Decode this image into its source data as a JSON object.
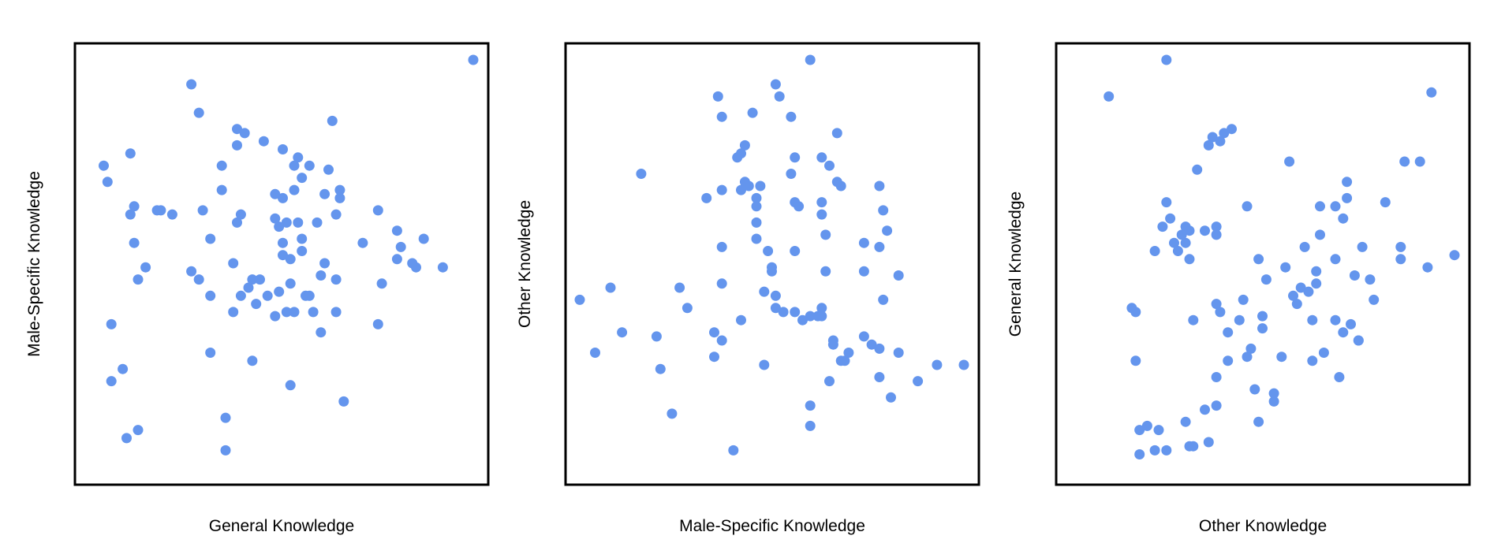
{
  "colors": {
    "point": "#6495ED",
    "frame": "#000000",
    "background": "#FFFFFF"
  },
  "chart_data": [
    {
      "type": "scatter",
      "title": "",
      "xlabel": "General Knowledge",
      "ylabel": "Male-Specific Knowledge",
      "grid": false,
      "ticks": false,
      "xlim": [
        0,
        100
      ],
      "ylim": [
        0,
        100
      ],
      "points": [
        [
          100,
          100
        ],
        [
          26,
          94
        ],
        [
          28,
          87
        ],
        [
          63,
          85
        ],
        [
          38,
          83
        ],
        [
          40,
          82
        ],
        [
          38,
          79
        ],
        [
          45,
          80
        ],
        [
          50,
          78
        ],
        [
          54,
          76
        ],
        [
          10,
          77
        ],
        [
          53,
          74
        ],
        [
          57,
          74
        ],
        [
          3,
          74
        ],
        [
          34,
          74
        ],
        [
          62,
          73
        ],
        [
          4,
          70
        ],
        [
          55,
          71
        ],
        [
          34,
          68
        ],
        [
          53,
          68
        ],
        [
          48,
          67
        ],
        [
          61,
          67
        ],
        [
          65,
          68
        ],
        [
          50,
          66
        ],
        [
          65,
          66
        ],
        [
          11,
          64
        ],
        [
          18,
          63
        ],
        [
          17,
          63
        ],
        [
          10,
          62
        ],
        [
          29,
          63
        ],
        [
          21,
          62
        ],
        [
          39,
          62
        ],
        [
          64,
          62
        ],
        [
          75,
          63
        ],
        [
          48,
          61
        ],
        [
          54,
          60
        ],
        [
          38,
          60
        ],
        [
          51,
          60
        ],
        [
          59,
          60
        ],
        [
          49,
          59
        ],
        [
          80,
          58
        ],
        [
          87,
          56
        ],
        [
          55,
          56
        ],
        [
          31,
          56
        ],
        [
          11,
          55
        ],
        [
          50,
          55
        ],
        [
          71,
          55
        ],
        [
          81,
          54
        ],
        [
          55,
          53
        ],
        [
          50,
          52
        ],
        [
          80,
          51
        ],
        [
          61,
          50
        ],
        [
          52,
          51
        ],
        [
          37,
          50
        ],
        [
          85,
          49
        ],
        [
          84,
          50
        ],
        [
          92,
          49
        ],
        [
          26,
          48
        ],
        [
          14,
          49
        ],
        [
          60,
          47
        ],
        [
          12,
          46
        ],
        [
          64,
          46
        ],
        [
          28,
          46
        ],
        [
          44,
          46
        ],
        [
          42,
          46
        ],
        [
          52,
          45
        ],
        [
          76,
          45
        ],
        [
          41,
          44
        ],
        [
          49,
          43
        ],
        [
          46,
          42
        ],
        [
          39,
          42
        ],
        [
          56,
          42
        ],
        [
          31,
          42
        ],
        [
          57,
          42
        ],
        [
          43,
          40
        ],
        [
          37,
          38
        ],
        [
          53,
          38
        ],
        [
          58,
          38
        ],
        [
          64,
          38
        ],
        [
          51,
          38
        ],
        [
          48,
          37
        ],
        [
          5,
          35
        ],
        [
          75,
          35
        ],
        [
          60,
          33
        ],
        [
          31,
          28
        ],
        [
          42,
          26
        ],
        [
          8,
          24
        ],
        [
          5,
          21
        ],
        [
          52,
          20
        ],
        [
          66,
          16
        ],
        [
          35,
          12
        ],
        [
          12,
          9
        ],
        [
          9,
          7
        ],
        [
          35,
          4
        ]
      ]
    },
    {
      "type": "scatter",
      "title": "",
      "xlabel": "Male-Specific Knowledge",
      "ylabel": "Other Knowledge",
      "grid": false,
      "ticks": false,
      "xlim": [
        0,
        100
      ],
      "ylim": [
        0,
        100
      ],
      "points": [
        [
          60,
          100
        ],
        [
          51,
          94
        ],
        [
          36,
          91
        ],
        [
          52,
          91
        ],
        [
          37,
          86
        ],
        [
          45,
          87
        ],
        [
          55,
          86
        ],
        [
          67,
          82
        ],
        [
          43,
          79
        ],
        [
          42,
          77
        ],
        [
          56,
          76
        ],
        [
          63,
          76
        ],
        [
          41,
          76
        ],
        [
          65,
          74
        ],
        [
          16,
          72
        ],
        [
          55,
          72
        ],
        [
          43,
          70
        ],
        [
          47,
          69
        ],
        [
          44,
          69
        ],
        [
          42,
          68
        ],
        [
          68,
          69
        ],
        [
          67,
          70
        ],
        [
          37,
          68
        ],
        [
          78,
          69
        ],
        [
          33,
          66
        ],
        [
          46,
          66
        ],
        [
          56,
          65
        ],
        [
          63,
          65
        ],
        [
          57,
          64
        ],
        [
          46,
          64
        ],
        [
          79,
          63
        ],
        [
          63,
          62
        ],
        [
          46,
          60
        ],
        [
          80,
          58
        ],
        [
          64,
          57
        ],
        [
          46,
          56
        ],
        [
          74,
          55
        ],
        [
          37,
          54
        ],
        [
          78,
          54
        ],
        [
          49,
          53
        ],
        [
          56,
          53
        ],
        [
          64,
          48
        ],
        [
          50,
          48
        ],
        [
          50,
          49
        ],
        [
          74,
          48
        ],
        [
          83,
          47
        ],
        [
          37,
          45
        ],
        [
          26,
          44
        ],
        [
          8,
          44
        ],
        [
          48,
          43
        ],
        [
          51,
          42
        ],
        [
          0,
          41
        ],
        [
          79,
          41
        ],
        [
          53,
          38
        ],
        [
          56,
          38
        ],
        [
          51,
          39
        ],
        [
          28,
          39
        ],
        [
          63,
          39
        ],
        [
          62,
          37
        ],
        [
          60,
          37
        ],
        [
          63,
          37
        ],
        [
          58,
          36
        ],
        [
          42,
          36
        ],
        [
          35,
          33
        ],
        [
          11,
          33
        ],
        [
          20,
          32
        ],
        [
          37,
          31
        ],
        [
          74,
          32
        ],
        [
          66,
          31
        ],
        [
          76,
          30
        ],
        [
          66,
          30
        ],
        [
          78,
          29
        ],
        [
          70,
          28
        ],
        [
          83,
          28
        ],
        [
          4,
          28
        ],
        [
          35,
          27
        ],
        [
          68,
          26
        ],
        [
          69,
          26
        ],
        [
          48,
          25
        ],
        [
          21,
          24
        ],
        [
          93,
          25
        ],
        [
          100,
          25
        ],
        [
          78,
          22
        ],
        [
          65,
          21
        ],
        [
          88,
          21
        ],
        [
          81,
          17
        ],
        [
          60,
          15
        ],
        [
          24,
          13
        ],
        [
          60,
          10
        ],
        [
          40,
          4
        ]
      ]
    },
    {
      "type": "scatter",
      "title": "",
      "xlabel": "Other Knowledge",
      "ylabel": "General Knowledge",
      "grid": false,
      "ticks": false,
      "xlim": [
        0,
        100
      ],
      "ylim": [
        0,
        100
      ],
      "points": [
        [
          25,
          100
        ],
        [
          10,
          91
        ],
        [
          94,
          92
        ],
        [
          42,
          83
        ],
        [
          40,
          82
        ],
        [
          37,
          81
        ],
        [
          39,
          80
        ],
        [
          36,
          79
        ],
        [
          57,
          75
        ],
        [
          87,
          75
        ],
        [
          91,
          75
        ],
        [
          33,
          73
        ],
        [
          72,
          70
        ],
        [
          72,
          66
        ],
        [
          25,
          65
        ],
        [
          46,
          64
        ],
        [
          65,
          64
        ],
        [
          69,
          64
        ],
        [
          82,
          65
        ],
        [
          71,
          61
        ],
        [
          26,
          61
        ],
        [
          24,
          59
        ],
        [
          30,
          59
        ],
        [
          31,
          58
        ],
        [
          38,
          59
        ],
        [
          38,
          57
        ],
        [
          35,
          58
        ],
        [
          65,
          57
        ],
        [
          29,
          57
        ],
        [
          30,
          55
        ],
        [
          27,
          55
        ],
        [
          61,
          54
        ],
        [
          76,
          54
        ],
        [
          28,
          53
        ],
        [
          22,
          53
        ],
        [
          31,
          51
        ],
        [
          49,
          51
        ],
        [
          69,
          51
        ],
        [
          56,
          49
        ],
        [
          86,
          54
        ],
        [
          86,
          51
        ],
        [
          93,
          49
        ],
        [
          100,
          52
        ],
        [
          64,
          48
        ],
        [
          74,
          47
        ],
        [
          51,
          46
        ],
        [
          78,
          46
        ],
        [
          64,
          45
        ],
        [
          60,
          44
        ],
        [
          62,
          43
        ],
        [
          58,
          42
        ],
        [
          45,
          41
        ],
        [
          59,
          40
        ],
        [
          79,
          41
        ],
        [
          38,
          40
        ],
        [
          39,
          38
        ],
        [
          16,
          39
        ],
        [
          17,
          38
        ],
        [
          50,
          37
        ],
        [
          32,
          36
        ],
        [
          44,
          36
        ],
        [
          63,
          36
        ],
        [
          69,
          36
        ],
        [
          73,
          35
        ],
        [
          50,
          34
        ],
        [
          41,
          33
        ],
        [
          71,
          33
        ],
        [
          75,
          31
        ],
        [
          75,
          31
        ],
        [
          47,
          29
        ],
        [
          66,
          28
        ],
        [
          46,
          27
        ],
        [
          55,
          27
        ],
        [
          17,
          26
        ],
        [
          41,
          26
        ],
        [
          63,
          26
        ],
        [
          38,
          22
        ],
        [
          70,
          22
        ],
        [
          48,
          19
        ],
        [
          53,
          18
        ],
        [
          53,
          16
        ],
        [
          38,
          15
        ],
        [
          35,
          14
        ],
        [
          30,
          11
        ],
        [
          49,
          11
        ],
        [
          20,
          10
        ],
        [
          18,
          9
        ],
        [
          23,
          9
        ],
        [
          36,
          6
        ],
        [
          31,
          5
        ],
        [
          32,
          5
        ],
        [
          25,
          4
        ],
        [
          22,
          4
        ],
        [
          18,
          3
        ]
      ]
    }
  ]
}
